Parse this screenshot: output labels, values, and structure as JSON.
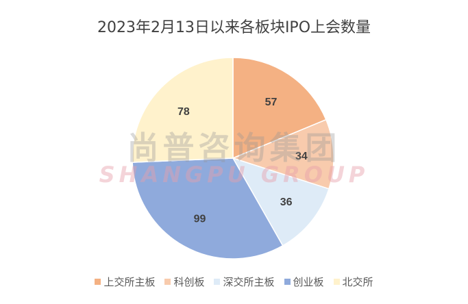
{
  "chart_data": {
    "type": "pie",
    "title": "2023年2月13日以来各板块IPO上会数量",
    "categories": [
      "上交所主板",
      "科创板",
      "深交所主板",
      "创业板",
      "北交所"
    ],
    "values": [
      57,
      34,
      36,
      99,
      78
    ],
    "colors": [
      "#F4B183",
      "#F8CBAD",
      "#DEEBF7",
      "#8FAADC",
      "#FFF2CC"
    ],
    "start": "12 o'clock, clockwise",
    "legend_position": "bottom"
  },
  "watermark": {
    "cn": "尚普咨询集团",
    "en": "SHANGPU GROUP"
  }
}
